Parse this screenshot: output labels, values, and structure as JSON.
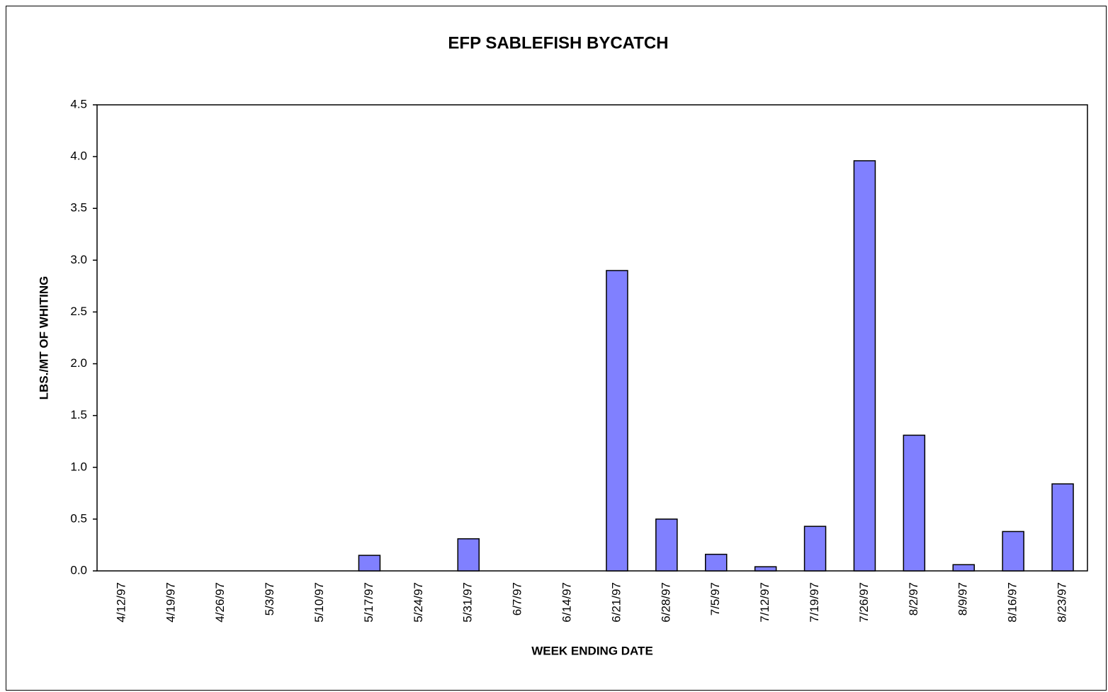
{
  "chart_data": {
    "type": "bar",
    "title": "EFP SABLEFISH BYCATCH",
    "x_label": "WEEK ENDING DATE",
    "y_label": "LBS./MT OF WHITING",
    "categories": [
      "4/12/97",
      "4/19/97",
      "4/26/97",
      "5/3/97",
      "5/10/97",
      "5/17/97",
      "5/24/97",
      "5/31/97",
      "6/7/97",
      "6/14/97",
      "6/21/97",
      "6/28/97",
      "7/5/97",
      "7/12/97",
      "7/19/97",
      "7/26/97",
      "8/2/97",
      "8/9/97",
      "8/16/97",
      "8/23/97"
    ],
    "values": [
      0,
      0,
      0,
      0,
      0,
      0.15,
      0,
      0.31,
      0,
      0,
      2.9,
      0.5,
      0.16,
      0.04,
      0.43,
      3.96,
      1.31,
      0.06,
      0.38,
      0.84
    ],
    "color": "#8080ff",
    "ylim": [
      0,
      4.5
    ],
    "yticks": [
      {
        "value": 0,
        "label": "0.0"
      },
      0.5,
      {
        "value": 1,
        "label": "1.0"
      },
      1.5,
      {
        "value": 2,
        "label": "2.0"
      },
      2.5,
      {
        "value": 3,
        "label": "3.0"
      },
      3.5,
      {
        "value": 4,
        "label": "4.0"
      },
      4.5
    ],
    "grid": false
  }
}
